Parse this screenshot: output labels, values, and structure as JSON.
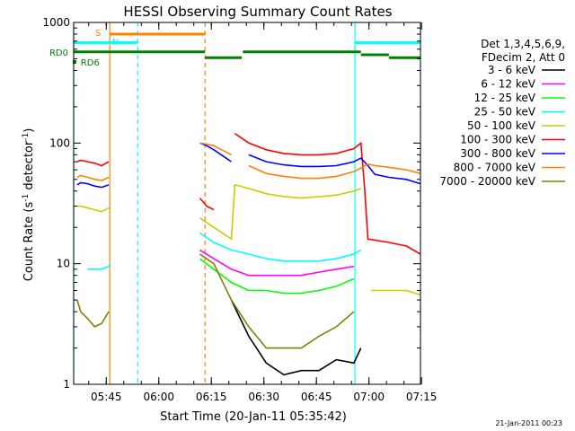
{
  "chart_data": {
    "type": "line",
    "title": "HESSI Observing Summary Count Rates",
    "xlabel": "Start Time (20-Jan-11 05:35:42)",
    "ylabel": "Count Rate (s⁻¹ detector⁻¹)",
    "ylabel_main": "Count Rate (s",
    "ylabel_sup1": "-1",
    "ylabel_mid": " detector",
    "ylabel_sup2": "-1",
    "ylabel_end": ")",
    "yscale": "log",
    "ylim": [
      1,
      1000
    ],
    "xlim_minutes": [
      0,
      99
    ],
    "x_ticks": [
      {
        "m": 9.3,
        "label": "05:45"
      },
      {
        "m": 24.3,
        "label": "06:00"
      },
      {
        "m": 39.3,
        "label": "06:15"
      },
      {
        "m": 54.3,
        "label": "06:30"
      },
      {
        "m": 69.3,
        "label": "06:45"
      },
      {
        "m": 84.3,
        "label": "07:00"
      },
      {
        "m": 99.3,
        "label": "07:15"
      }
    ],
    "y_ticks": [
      {
        "v": 1,
        "label": "1"
      },
      {
        "v": 10,
        "label": "10"
      },
      {
        "v": 100,
        "label": "100"
      },
      {
        "v": 1000,
        "label": "1000"
      }
    ],
    "legend_title": [
      "Det 1,3,4,5,6,9,",
      "FDecim 2, Att 0"
    ],
    "legend_position": "right",
    "series": [
      {
        "name": "3 - 6 keV",
        "color": "#000000",
        "x": [
          0,
          4,
          10,
          11,
          35,
          37,
          40,
          45,
          50,
          55,
          60,
          65,
          70,
          75,
          80,
          82,
          85,
          99
        ],
        "values": [
          null,
          null,
          null,
          null,
          null,
          null,
          null,
          5,
          2.5,
          1.5,
          1.2,
          1.3,
          1.3,
          1.6,
          1.5,
          2,
          null,
          null
        ]
      },
      {
        "name": "6 - 12 keV",
        "color": "#ff00ff",
        "x": [
          0,
          35,
          36,
          40,
          45,
          50,
          55,
          60,
          65,
          70,
          75,
          80,
          81,
          85,
          99
        ],
        "values": [
          null,
          null,
          13,
          11,
          9,
          8,
          8,
          8,
          8,
          8.5,
          9,
          9.5,
          null,
          null,
          null
        ]
      },
      {
        "name": "12 - 25 keV",
        "color": "#00ff00",
        "x": [
          0,
          35,
          36,
          40,
          45,
          50,
          55,
          60,
          65,
          70,
          75,
          80,
          81,
          85,
          99
        ],
        "values": [
          null,
          null,
          11,
          9,
          7,
          6,
          6,
          5.7,
          5.7,
          6,
          6.5,
          7.5,
          null,
          null,
          null
        ]
      },
      {
        "name": "25 - 50 keV",
        "color": "#00ffff",
        "x": [
          0,
          1,
          4,
          6,
          8,
          10,
          10.5,
          11,
          35,
          36,
          40,
          45,
          50,
          55,
          60,
          65,
          70,
          75,
          80,
          82,
          84,
          90,
          95,
          99
        ],
        "values": [
          null,
          null,
          9,
          9,
          9,
          9.5,
          10,
          null,
          null,
          18,
          15,
          13,
          12,
          11,
          10.5,
          10.5,
          10.5,
          11,
          12,
          13,
          null,
          null,
          null,
          null
        ]
      },
      {
        "name": "50 - 100 keV",
        "color": "#cccc00",
        "x": [
          0,
          1,
          2,
          4,
          6,
          8,
          10,
          11,
          35,
          36,
          40,
          45,
          46,
          50,
          55,
          60,
          65,
          70,
          75,
          80,
          82,
          83,
          85,
          90,
          95,
          99
        ],
        "values": [
          null,
          30,
          30,
          29,
          28,
          27,
          29,
          null,
          null,
          24,
          20,
          16,
          45,
          42,
          38,
          36,
          35,
          36,
          37,
          40,
          42,
          null,
          6,
          6,
          6,
          5.5
        ]
      },
      {
        "name": "100 - 300 keV",
        "color": "#ff0000",
        "x": [
          0,
          1,
          2,
          4,
          6,
          8,
          10,
          11,
          35,
          36,
          38,
          40,
          41,
          45,
          46,
          50,
          55,
          60,
          65,
          70,
          75,
          80,
          82,
          83,
          84,
          90,
          95,
          99
        ],
        "values": [
          null,
          70,
          72,
          70,
          68,
          65,
          70,
          null,
          null,
          35,
          30,
          28,
          null,
          null,
          120,
          100,
          88,
          82,
          80,
          80,
          82,
          90,
          100,
          45,
          16,
          15,
          14,
          12
        ]
      },
      {
        "name": "300 - 800 keV",
        "color": "#0000ff",
        "x": [
          0,
          1,
          2,
          4,
          6,
          8,
          10,
          11,
          35,
          36,
          38,
          40,
          45,
          46,
          50,
          55,
          60,
          65,
          70,
          75,
          80,
          82,
          84,
          86,
          90,
          95,
          99
        ],
        "values": [
          null,
          45,
          47,
          46,
          44,
          43,
          45,
          null,
          null,
          100,
          95,
          88,
          70,
          null,
          80,
          70,
          66,
          64,
          64,
          65,
          70,
          75,
          65,
          55,
          52,
          50,
          46
        ]
      },
      {
        "name": "800 - 7000 keV",
        "color": "#ff8000",
        "x": [
          0,
          1,
          2,
          4,
          6,
          8,
          10,
          11,
          35,
          36,
          38,
          40,
          45,
          46,
          50,
          55,
          60,
          65,
          70,
          75,
          80,
          82,
          84,
          86,
          90,
          95,
          99
        ],
        "values": [
          null,
          52,
          54,
          52,
          50,
          49,
          52,
          null,
          null,
          100,
          98,
          95,
          80,
          null,
          65,
          56,
          53,
          51,
          51,
          53,
          58,
          62,
          67,
          65,
          63,
          60,
          56
        ]
      },
      {
        "name": "7000 - 20000 keV",
        "color": "#808000",
        "x": [
          0,
          1,
          2,
          4,
          6,
          8,
          10,
          11,
          35,
          36,
          40,
          45,
          50,
          55,
          60,
          65,
          70,
          75,
          80,
          82,
          85,
          90,
          95,
          99
        ],
        "values": [
          null,
          5,
          4,
          3.5,
          3,
          3.2,
          4,
          null,
          null,
          12,
          10,
          5,
          3,
          2,
          2,
          2,
          2.5,
          3,
          4,
          null,
          null,
          null,
          null,
          null
        ]
      }
    ],
    "annotations": {
      "saa_label": "S",
      "night_label": "N",
      "rd0_label": "RD0",
      "rd6_label": "RD6"
    },
    "bars": [
      {
        "label": "S",
        "color": "#ff8000",
        "x": [
          10.3,
          37.5
        ],
        "value": 800
      },
      {
        "label": "N",
        "color": "#00ffff",
        "x": [
          0,
          18.3
        ],
        "value": 680
      },
      {
        "label": "N",
        "color": "#00ffff",
        "x": [
          80.3,
          99
        ],
        "value": 680
      },
      {
        "label": "RD0",
        "color": "#008000",
        "x": [
          0,
          37.5
        ],
        "value": 570
      },
      {
        "label": "RD0",
        "color": "#008000",
        "x": [
          37.5,
          48
        ],
        "value": 510
      },
      {
        "label": "RD0",
        "color": "#008000",
        "x": [
          48.3,
          82
        ],
        "value": 570
      },
      {
        "label": "RD0",
        "color": "#008000",
        "x": [
          82,
          90
        ],
        "value": 540
      },
      {
        "label": "RD0",
        "color": "#008000",
        "x": [
          90,
          99
        ],
        "value": 510
      }
    ],
    "vlines": [
      {
        "m": 0,
        "color": "#00ffff",
        "style": "solid"
      },
      {
        "m": 10.3,
        "color": "#ff8000",
        "style": "solid"
      },
      {
        "m": 18.3,
        "color": "#00ffff",
        "style": "dashed"
      },
      {
        "m": 37.5,
        "color": "#ff8000",
        "style": "dashed"
      },
      {
        "m": 80.3,
        "color": "#00ffff",
        "style": "solid"
      },
      {
        "m": 99,
        "color": "#00ffff",
        "style": "dashed"
      }
    ],
    "footer_date": "21-Jan-2011 00:23"
  }
}
